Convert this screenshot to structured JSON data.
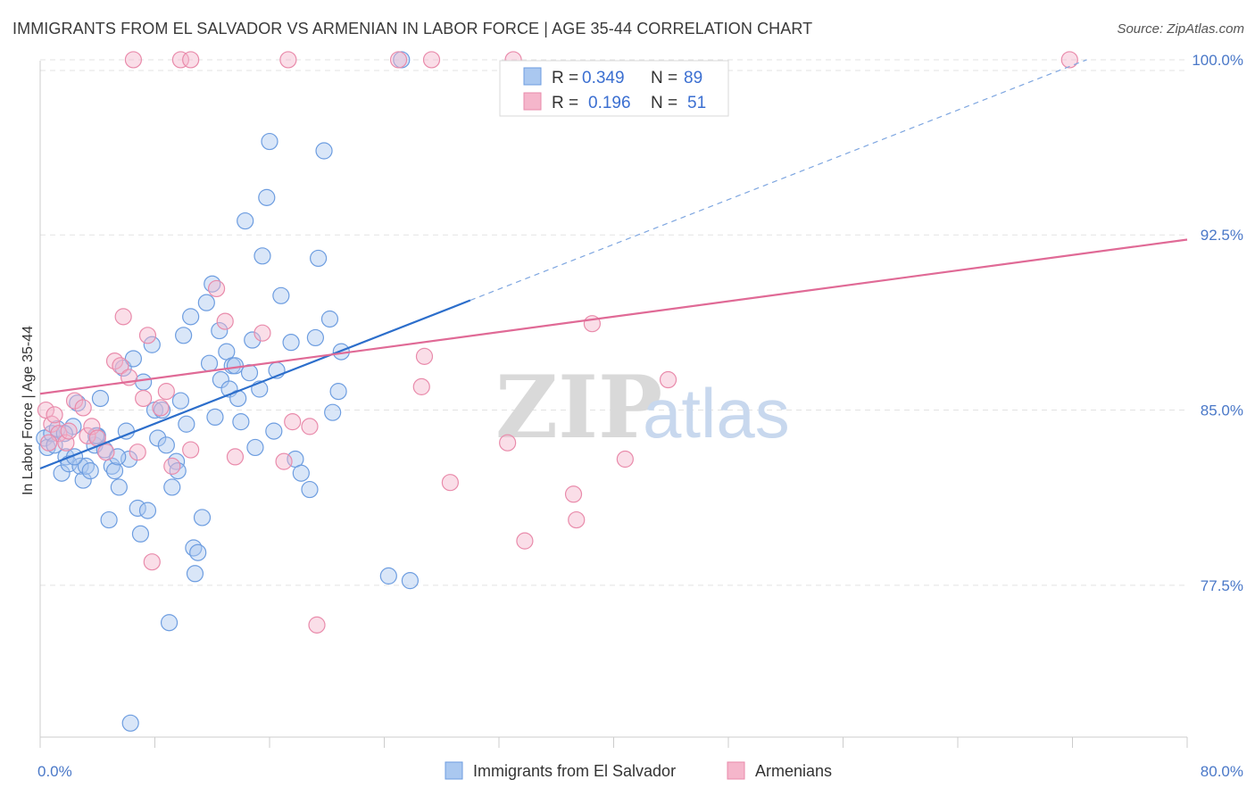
{
  "title": "IMMIGRANTS FROM EL SALVADOR VS ARMENIAN IN LABOR FORCE | AGE 35-44 CORRELATION CHART",
  "source": "Source: ZipAtlas.com",
  "colors": {
    "blue_fill": "#aac8f0",
    "blue_stroke": "#6d9de0",
    "blue_line": "#2c6ecb",
    "pink_fill": "#f5b6cb",
    "pink_stroke": "#e98bab",
    "pink_line": "#e06a96",
    "grid": "#e3e3e3",
    "axis_text": "#4a78c8"
  },
  "legend": {
    "rows": [
      {
        "r_label": "R =",
        "r_value": "0.349",
        "n_label": "N =",
        "n_value": "89"
      },
      {
        "r_label": "R =",
        "r_value": "0.196",
        "n_label": "N =",
        "n_value": "51"
      }
    ]
  },
  "bottom_legend": [
    "Immigrants from El Salvador",
    "Armenians"
  ],
  "watermark": {
    "zip": "ZIP",
    "atlas": "atlas"
  },
  "chart_data": {
    "type": "scatter",
    "title": "IMMIGRANTS FROM EL SALVADOR VS ARMENIAN IN LABOR FORCE | AGE 35-44 CORRELATION CHART",
    "ylabel": "In Labor Force | Age 35-44",
    "xlabel": "",
    "xlim": [
      0,
      80
    ],
    "ylim": [
      71.0,
      100.8
    ],
    "x_tick_labels": [
      {
        "value": 0,
        "label": "0.0%"
      },
      {
        "value": 80,
        "label": "80.0%"
      }
    ],
    "y_tick_labels": [
      {
        "value": 100.0,
        "label": "100.0%"
      },
      {
        "value": 92.5,
        "label": "92.5%"
      },
      {
        "value": 85.0,
        "label": "85.0%"
      },
      {
        "value": 77.5,
        "label": "77.5%"
      }
    ],
    "x_minor_ticks": [
      0,
      8,
      16,
      24,
      32,
      40,
      48,
      56,
      64,
      72,
      80
    ],
    "grid": true,
    "legend_placement": "top-center",
    "series": [
      {
        "name": "Immigrants from El Salvador",
        "color": "#aac8f0",
        "trend": {
          "x0": 0.0,
          "y0": 82.5,
          "x1": 30.0,
          "y1": 89.7,
          "dash_to_x": 73.0,
          "dash_to_y": 100.0
        },
        "points": [
          [
            0.3,
            83.8
          ],
          [
            0.5,
            83.4
          ],
          [
            0.8,
            84.0
          ],
          [
            1.0,
            83.5
          ],
          [
            1.2,
            84.2
          ],
          [
            1.5,
            82.3
          ],
          [
            1.8,
            83.0
          ],
          [
            2.0,
            82.7
          ],
          [
            2.3,
            84.3
          ],
          [
            2.6,
            85.3
          ],
          [
            2.8,
            82.6
          ],
          [
            3.0,
            82.0
          ],
          [
            3.2,
            82.6
          ],
          [
            3.5,
            82.4
          ],
          [
            3.8,
            83.5
          ],
          [
            4.0,
            83.9
          ],
          [
            4.2,
            85.5
          ],
          [
            4.5,
            83.3
          ],
          [
            4.8,
            80.3
          ],
          [
            5.0,
            82.6
          ],
          [
            5.2,
            82.4
          ],
          [
            5.5,
            81.7
          ],
          [
            5.8,
            86.8
          ],
          [
            6.0,
            84.1
          ],
          [
            6.2,
            82.9
          ],
          [
            6.5,
            87.2
          ],
          [
            6.8,
            80.8
          ],
          [
            7.0,
            79.7
          ],
          [
            7.2,
            86.2
          ],
          [
            7.5,
            80.7
          ],
          [
            7.8,
            87.8
          ],
          [
            8.0,
            85.0
          ],
          [
            8.2,
            83.8
          ],
          [
            8.5,
            85.0
          ],
          [
            8.8,
            83.5
          ],
          [
            9.0,
            75.9
          ],
          [
            9.2,
            81.7
          ],
          [
            9.5,
            82.8
          ],
          [
            9.8,
            85.4
          ],
          [
            10.0,
            88.2
          ],
          [
            10.2,
            84.4
          ],
          [
            10.5,
            89.0
          ],
          [
            10.7,
            79.1
          ],
          [
            10.8,
            78.0
          ],
          [
            11.0,
            78.9
          ],
          [
            11.3,
            80.4
          ],
          [
            11.6,
            89.6
          ],
          [
            11.8,
            87.0
          ],
          [
            12.0,
            90.4
          ],
          [
            12.2,
            84.7
          ],
          [
            12.6,
            86.3
          ],
          [
            13.0,
            87.5
          ],
          [
            13.2,
            85.9
          ],
          [
            13.4,
            86.9
          ],
          [
            13.6,
            86.9
          ],
          [
            13.8,
            85.5
          ],
          [
            14.0,
            84.5
          ],
          [
            14.3,
            93.1
          ],
          [
            14.6,
            86.6
          ],
          [
            15.0,
            83.4
          ],
          [
            15.3,
            85.9
          ],
          [
            15.5,
            91.6
          ],
          [
            15.8,
            94.1
          ],
          [
            16.0,
            96.5
          ],
          [
            16.3,
            84.1
          ],
          [
            16.5,
            86.7
          ],
          [
            16.8,
            89.9
          ],
          [
            17.5,
            87.9
          ],
          [
            17.8,
            82.9
          ],
          [
            18.2,
            82.3
          ],
          [
            18.8,
            81.6
          ],
          [
            19.2,
            88.1
          ],
          [
            19.4,
            91.5
          ],
          [
            19.8,
            96.1
          ],
          [
            20.2,
            88.9
          ],
          [
            20.4,
            84.9
          ],
          [
            20.8,
            85.8
          ],
          [
            21.0,
            87.5
          ],
          [
            24.3,
            77.9
          ],
          [
            25.2,
            100.0
          ],
          [
            25.8,
            77.7
          ],
          [
            6.3,
            71.6
          ],
          [
            3.9,
            83.9
          ],
          [
            2.4,
            83.0
          ],
          [
            1.7,
            84.0
          ],
          [
            5.4,
            83.0
          ],
          [
            12.5,
            88.4
          ],
          [
            9.6,
            82.4
          ],
          [
            14.8,
            88.0
          ]
        ]
      },
      {
        "name": "Armenians",
        "color": "#f5b6cb",
        "trend": {
          "x0": 0.0,
          "y0": 85.7,
          "x1": 80.0,
          "y1": 92.3
        },
        "points": [
          [
            0.4,
            85.0
          ],
          [
            0.8,
            84.4
          ],
          [
            1.0,
            84.8
          ],
          [
            1.3,
            84.0
          ],
          [
            1.8,
            83.6
          ],
          [
            2.4,
            85.4
          ],
          [
            3.0,
            85.1
          ],
          [
            3.3,
            83.9
          ],
          [
            3.6,
            84.3
          ],
          [
            4.0,
            83.8
          ],
          [
            4.6,
            83.2
          ],
          [
            5.2,
            87.1
          ],
          [
            5.6,
            86.9
          ],
          [
            5.8,
            89.0
          ],
          [
            6.2,
            86.4
          ],
          [
            6.8,
            83.2
          ],
          [
            7.2,
            85.5
          ],
          [
            7.5,
            88.2
          ],
          [
            7.8,
            78.5
          ],
          [
            8.4,
            85.1
          ],
          [
            8.8,
            85.8
          ],
          [
            9.2,
            82.6
          ],
          [
            10.5,
            83.3
          ],
          [
            12.3,
            90.2
          ],
          [
            12.9,
            88.8
          ],
          [
            13.6,
            83.0
          ],
          [
            15.5,
            88.3
          ],
          [
            17.0,
            82.8
          ],
          [
            17.6,
            84.5
          ],
          [
            18.8,
            84.3
          ],
          [
            19.3,
            75.8
          ],
          [
            6.5,
            100.0
          ],
          [
            9.8,
            100.0
          ],
          [
            10.5,
            100.0
          ],
          [
            17.3,
            100.0
          ],
          [
            25.0,
            100.0
          ],
          [
            27.3,
            100.0
          ],
          [
            33.0,
            100.0
          ],
          [
            71.8,
            100.0
          ],
          [
            26.8,
            87.3
          ],
          [
            26.6,
            86.0
          ],
          [
            28.6,
            81.9
          ],
          [
            32.6,
            83.6
          ],
          [
            33.8,
            79.4
          ],
          [
            37.2,
            81.4
          ],
          [
            37.4,
            80.3
          ],
          [
            38.5,
            88.7
          ],
          [
            40.8,
            82.9
          ],
          [
            43.8,
            86.3
          ],
          [
            0.6,
            83.6
          ],
          [
            2.0,
            84.1
          ]
        ]
      }
    ]
  }
}
